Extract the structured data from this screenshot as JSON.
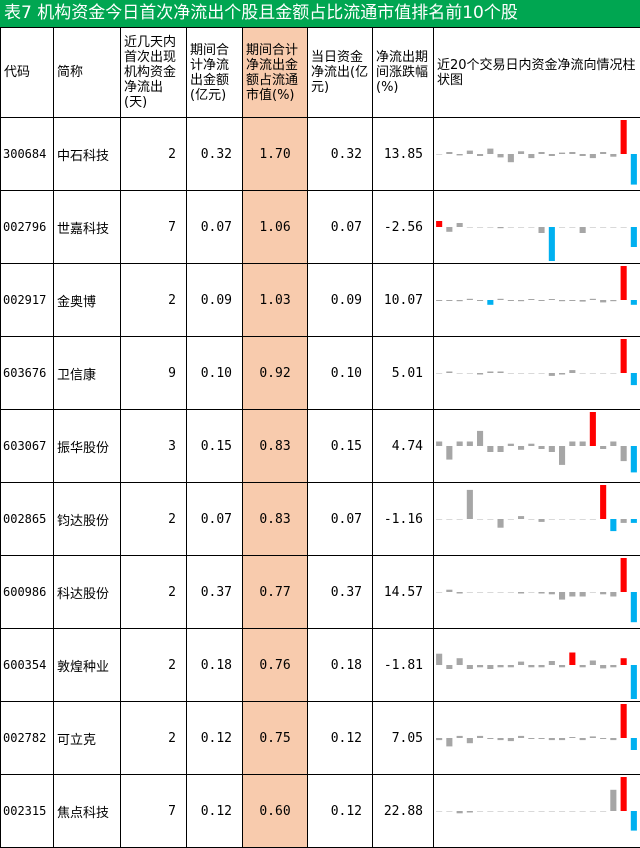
{
  "title": "表7 机构资金今日首次净流出个股且金额占比流通市值排名前10个股",
  "headers": {
    "code": "代码",
    "name": "简称",
    "days": "近几天内首次出现机构资金净流出(天)",
    "period_outflow": "期间合计净流出金额(亿元)",
    "period_ratio": "期间合计净流出金额占流通市值(%)",
    "today_outflow": "当日资金净流出(亿元)",
    "change": "净流出期间涨跌幅(%)",
    "chart": "近20个交易日内资金净流向情况柱状图"
  },
  "colors": {
    "title_bg": "#00a651",
    "highlight": "#f8cbad",
    "up": "#ff0000",
    "down": "#00b0f0",
    "neutral": "#a6a6a6"
  },
  "rows": [
    {
      "code": "300684",
      "name": "中石科技",
      "days": "2",
      "period_outflow": "0.32",
      "period_ratio": "1.70",
      "today_outflow": "0.32",
      "change": "13.85",
      "flows": [
        0,
        0.3,
        -0.2,
        0.5,
        -0.3,
        0.8,
        -0.5,
        -1.2,
        0.4,
        -0.6,
        0.3,
        -0.3,
        0.2,
        0.3,
        -0.3,
        -0.6,
        0.3,
        -0.4,
        5.0,
        -4.5
      ]
    },
    {
      "code": "002796",
      "name": "世嘉科技",
      "days": "7",
      "period_outflow": "0.07",
      "period_ratio": "1.06",
      "today_outflow": "0.07",
      "change": "-2.56",
      "flows": [
        1.5,
        -1.2,
        1.0,
        0,
        0,
        0,
        -0.3,
        0,
        0,
        0,
        -1.5,
        -8.5,
        0,
        0,
        -1.5,
        0,
        0,
        0,
        0,
        -5.0
      ]
    },
    {
      "code": "002917",
      "name": "金奥博",
      "days": "2",
      "period_outflow": "0.09",
      "period_ratio": "1.03",
      "today_outflow": "0.09",
      "change": "10.07",
      "flows": [
        -0.2,
        -0.2,
        -0.3,
        0.3,
        -0.2,
        -1.2,
        0.3,
        -0.2,
        -0.3,
        0.2,
        -0.2,
        0.2,
        -0.3,
        -0.2,
        -0.4,
        0.3,
        -0.6,
        -0.3,
        8.5,
        -1.2
      ]
    },
    {
      "code": "603676",
      "name": "卫信康",
      "days": "9",
      "period_outflow": "0.10",
      "period_ratio": "0.92",
      "today_outflow": "0.10",
      "change": "5.01",
      "flows": [
        0,
        0.3,
        0,
        0,
        -0.3,
        0.3,
        0.3,
        0,
        0,
        0,
        0,
        -0.6,
        -0.3,
        0.6,
        0,
        0,
        0,
        0,
        7.0,
        -2.5
      ]
    },
    {
      "code": "603067",
      "name": "振华股份",
      "days": "3",
      "period_outflow": "0.15",
      "period_ratio": "0.83",
      "today_outflow": "0.15",
      "change": "4.74",
      "flows": [
        0.6,
        -1.8,
        0.6,
        0.6,
        2.0,
        -0.8,
        -0.8,
        0.3,
        -0.5,
        0.3,
        -0.4,
        -0.8,
        -2.5,
        0.6,
        0.6,
        4.5,
        -0.4,
        0.6,
        -2.0,
        -3.5
      ]
    },
    {
      "code": "002865",
      "name": "钧达股份",
      "days": "2",
      "period_outflow": "0.07",
      "period_ratio": "0.83",
      "today_outflow": "0.07",
      "change": "-1.16",
      "flows": [
        0,
        0,
        0,
        6.0,
        0,
        0,
        -1.8,
        0,
        0.6,
        0,
        -0.6,
        0,
        0,
        0,
        0,
        0,
        7.0,
        -2.5,
        -0.8,
        -0.8
      ]
    },
    {
      "code": "600986",
      "name": "科达股份",
      "days": "2",
      "period_outflow": "0.37",
      "period_ratio": "0.77",
      "today_outflow": "0.37",
      "change": "14.57",
      "flows": [
        0,
        0.3,
        -0.2,
        0,
        0,
        0,
        0,
        0,
        -0.2,
        0,
        -0.2,
        -0.3,
        -1.0,
        -0.6,
        -0.6,
        0,
        -0.3,
        -0.6,
        4.5,
        -4.0
      ]
    },
    {
      "code": "600354",
      "name": "敦煌种业",
      "days": "2",
      "period_outflow": "0.18",
      "period_ratio": "0.76",
      "today_outflow": "0.18",
      "change": "-1.81",
      "flows": [
        2.0,
        -0.7,
        1.2,
        -0.7,
        -0.4,
        -0.7,
        -0.4,
        -0.4,
        0.6,
        -0.4,
        -0.4,
        0.7,
        -0.4,
        2.2,
        -0.4,
        0.8,
        -0.6,
        -0.4,
        1.2,
        -6.0
      ]
    },
    {
      "code": "002782",
      "name": "可立克",
      "days": "2",
      "period_outflow": "0.12",
      "period_ratio": "0.75",
      "today_outflow": "0.12",
      "change": "7.05",
      "flows": [
        -0.4,
        -1.6,
        0.4,
        -1.0,
        0.4,
        -0.2,
        -0.4,
        -0.6,
        0.4,
        -0.2,
        -0.2,
        -0.4,
        -0.4,
        0.2,
        -0.4,
        0.3,
        -0.2,
        -0.4,
        6.5,
        -2.3
      ]
    },
    {
      "code": "002315",
      "name": "焦点科技",
      "days": "7",
      "period_outflow": "0.12",
      "period_ratio": "0.60",
      "today_outflow": "0.12",
      "change": "22.88",
      "flows": [
        0,
        0,
        -0.3,
        -0.2,
        0,
        0,
        0,
        0,
        0,
        0,
        0,
        0,
        0,
        0,
        0,
        0,
        0,
        2.8,
        4.5,
        -2.6
      ]
    }
  ]
}
